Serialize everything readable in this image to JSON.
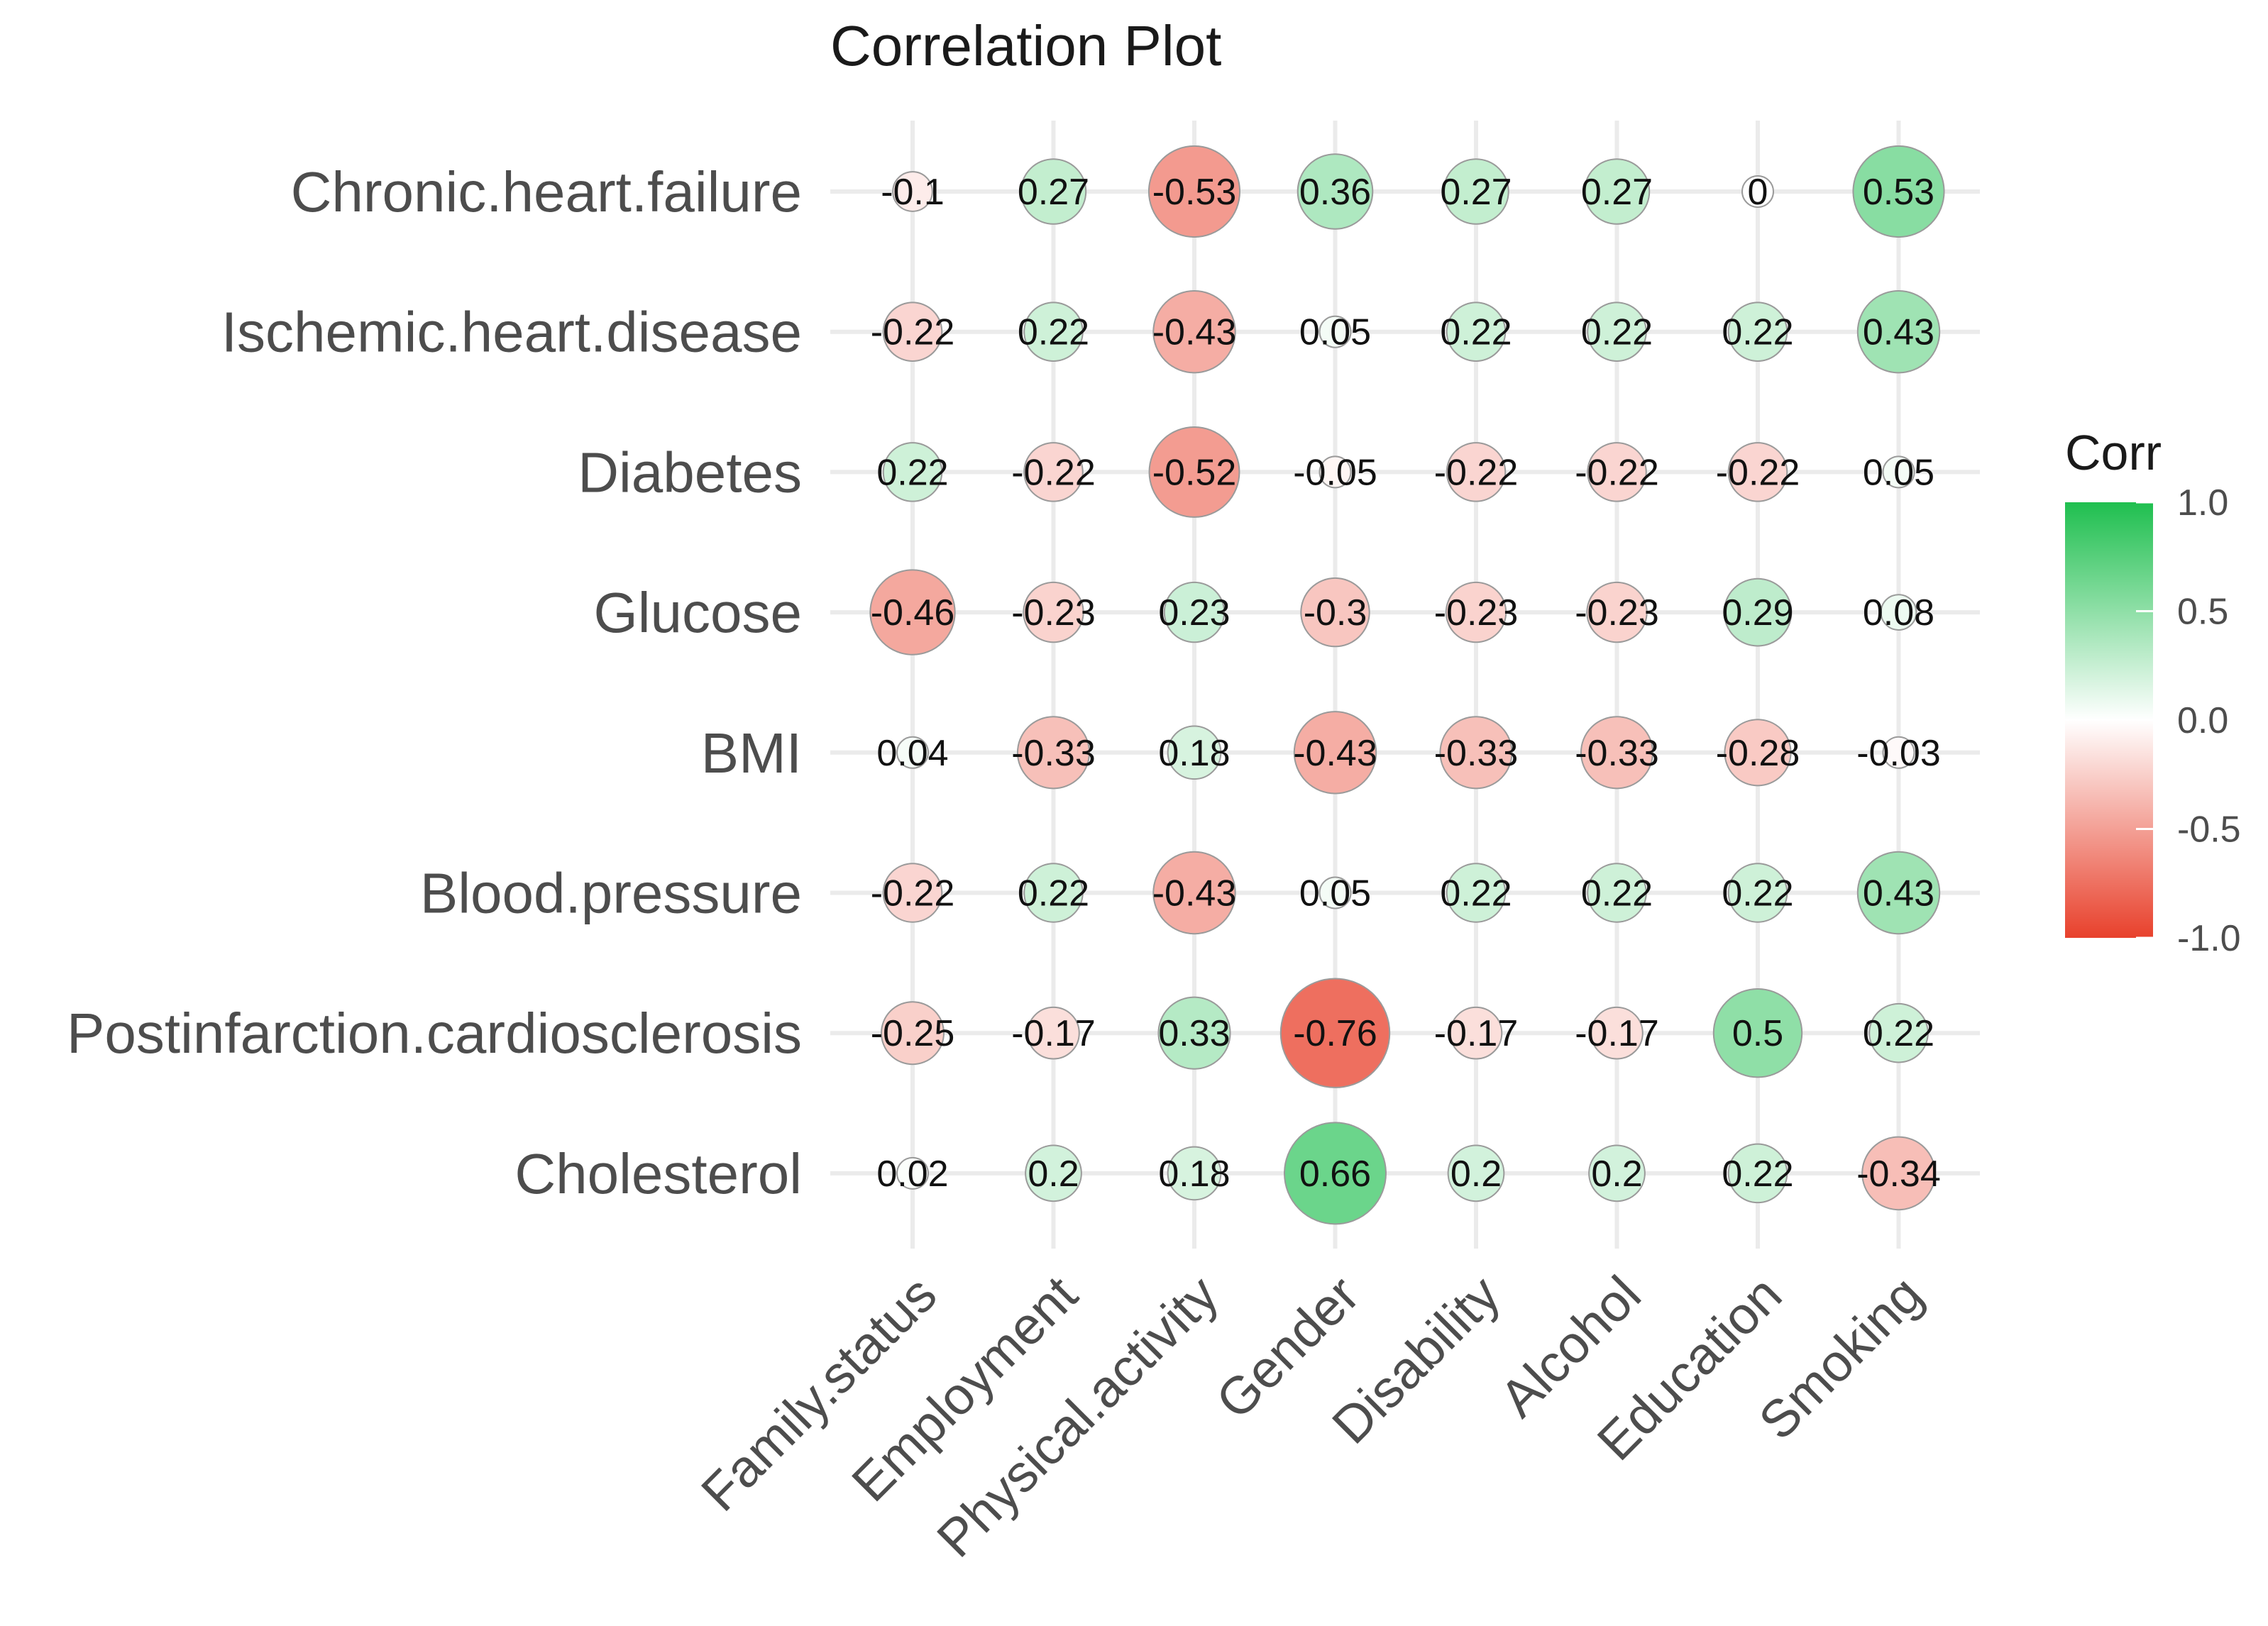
{
  "chart_data": {
    "type": "heatmap",
    "style": "circle-correlation",
    "title": "Correlation Plot",
    "rows": [
      "Chronic.heart.failure",
      "Ischemic.heart.disease",
      "Diabetes",
      "Glucose",
      "BMI",
      "Blood.pressure",
      "Postinfarction.cardiosclerosis",
      "Cholesterol"
    ],
    "columns": [
      "Family.status",
      "Employment",
      "Physical.activity",
      "Gender",
      "Disability",
      "Alcohol",
      "Education",
      "Smoking"
    ],
    "values": [
      [
        -0.1,
        0.27,
        -0.53,
        0.36,
        0.27,
        0.27,
        0,
        0.53
      ],
      [
        -0.22,
        0.22,
        -0.43,
        0.05,
        0.22,
        0.22,
        0.22,
        0.43
      ],
      [
        0.22,
        -0.22,
        -0.52,
        -0.05,
        -0.22,
        -0.22,
        -0.22,
        0.05
      ],
      [
        -0.46,
        -0.23,
        0.23,
        -0.3,
        -0.23,
        -0.23,
        0.29,
        0.08
      ],
      [
        0.04,
        -0.33,
        0.18,
        -0.43,
        -0.33,
        -0.33,
        -0.28,
        -0.03
      ],
      [
        -0.22,
        0.22,
        -0.43,
        0.05,
        0.22,
        0.22,
        0.22,
        0.43
      ],
      [
        -0.25,
        -0.17,
        0.33,
        -0.76,
        -0.17,
        -0.17,
        0.5,
        0.22
      ],
      [
        0.02,
        0.2,
        0.18,
        0.66,
        0.2,
        0.2,
        0.22,
        -0.34
      ]
    ],
    "legend": {
      "title": "Corr",
      "ticks": [
        "1.0",
        "0.5",
        "0.0",
        "-0.5",
        "-1.0"
      ],
      "range": [
        -1,
        1
      ],
      "position": "right"
    },
    "colors": {
      "negative": "#e8412c",
      "zero": "#ffffff",
      "positive": "#1fbf4f",
      "grid": "#ebebeb",
      "circle_stroke": "#9a9a9a"
    }
  }
}
